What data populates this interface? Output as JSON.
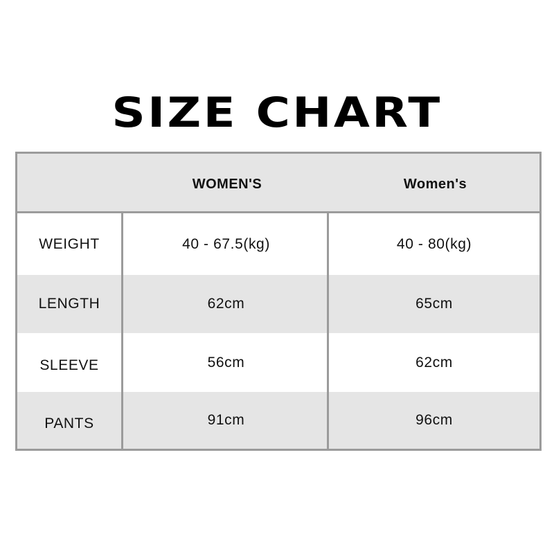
{
  "title": "SIZE CHART",
  "table": {
    "headers": [
      "",
      "WOMEN'S",
      "Women's"
    ],
    "rows": [
      {
        "label": "WEIGHT",
        "values": [
          "40 - 67.5(kg)",
          "40 - 80(kg)"
        ]
      },
      {
        "label": "LENGTH",
        "values": [
          "62cm",
          "65cm"
        ]
      },
      {
        "label": "SLEEVE",
        "values": [
          "56cm",
          "62cm"
        ]
      },
      {
        "label": "PANTS",
        "values": [
          "91cm",
          "96cm"
        ]
      }
    ]
  },
  "colors": {
    "border": "#9b9b9b",
    "stripe": "#e5e5e5",
    "text": "#111111"
  }
}
